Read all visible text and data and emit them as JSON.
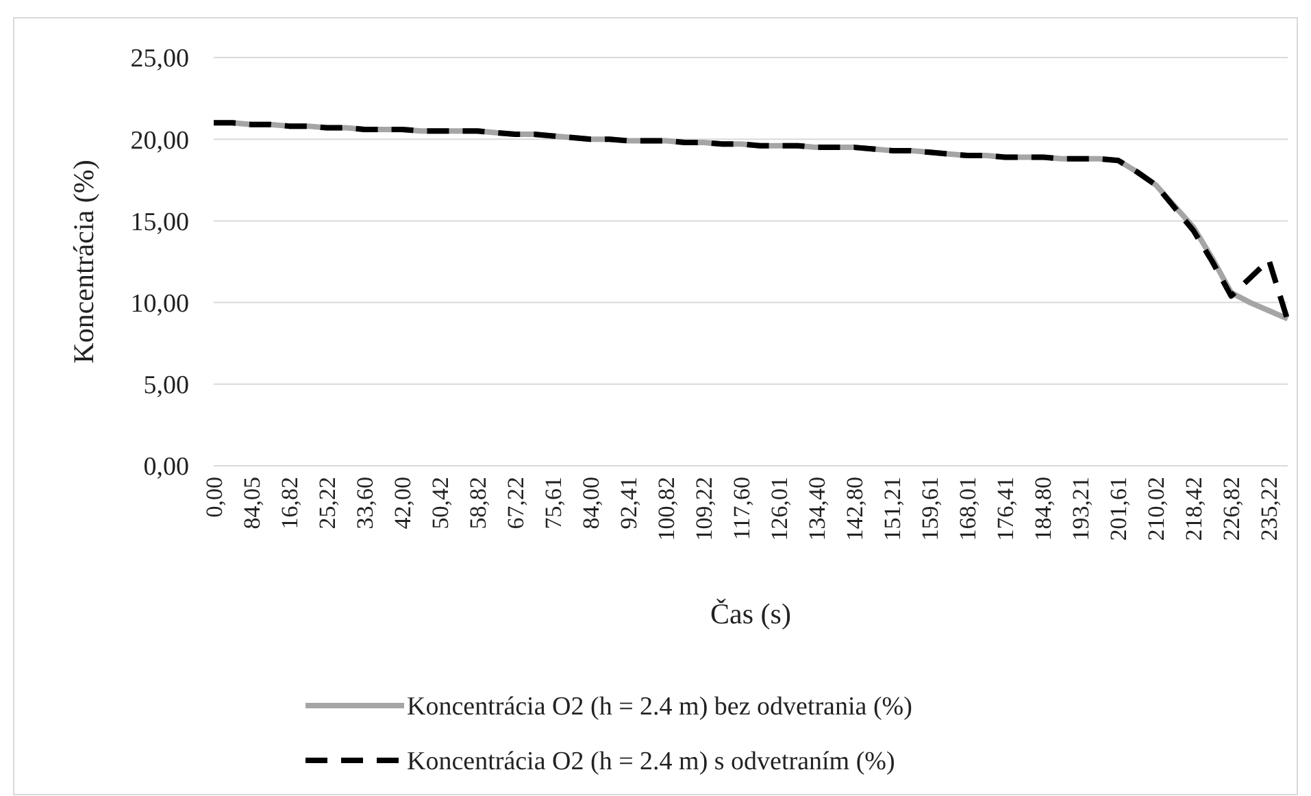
{
  "chart_data": {
    "type": "line",
    "xlabel": "Čas (s)",
    "ylabel": "Koncentrácia (%)",
    "categories": [
      "0,00",
      null,
      "84,05",
      null,
      "16,82",
      null,
      "25,22",
      null,
      "33,60",
      null,
      "42,00",
      null,
      "50,42",
      null,
      "58,82",
      null,
      "67,22",
      null,
      "75,61",
      null,
      "84,00",
      null,
      "92,41",
      null,
      "100,82",
      null,
      "109,22",
      null,
      "117,60",
      null,
      "126,01",
      null,
      "134,40",
      null,
      "142,80",
      null,
      "151,21",
      null,
      "159,61",
      null,
      "168,01",
      null,
      "176,41",
      null,
      "184,80",
      null,
      "193,21",
      null,
      "201,61",
      null,
      "210,02",
      null,
      "218,42",
      null,
      "226,82",
      null,
      "235,22",
      null
    ],
    "series": [
      {
        "name": "Koncentrácia O2 (h = 2.4 m) bez odvetrania (%)",
        "color": "#a5a5a5",
        "line_style": "solid",
        "values": [
          21.0,
          21.0,
          20.9,
          20.9,
          20.8,
          20.8,
          20.7,
          20.7,
          20.6,
          20.6,
          20.6,
          20.5,
          20.5,
          20.5,
          20.5,
          20.4,
          20.3,
          20.3,
          20.2,
          20.1,
          20.0,
          20.0,
          19.9,
          19.9,
          19.9,
          19.8,
          19.8,
          19.7,
          19.7,
          19.6,
          19.6,
          19.6,
          19.5,
          19.5,
          19.5,
          19.4,
          19.3,
          19.3,
          19.2,
          19.1,
          19.0,
          19.0,
          18.9,
          18.9,
          18.9,
          18.8,
          18.8,
          18.8,
          18.7,
          18.0,
          17.2,
          15.9,
          14.6,
          12.7,
          10.6,
          10.0,
          9.5,
          9.0
        ]
      },
      {
        "name": "Koncentrácia O2 (h = 2.4 m) s odvetraním (%)",
        "color": "#000000",
        "line_style": "dashed",
        "values": [
          21.0,
          21.0,
          20.9,
          20.9,
          20.8,
          20.8,
          20.7,
          20.7,
          20.6,
          20.6,
          20.6,
          20.5,
          20.5,
          20.5,
          20.5,
          20.4,
          20.3,
          20.3,
          20.2,
          20.1,
          20.0,
          20.0,
          19.9,
          19.9,
          19.9,
          19.8,
          19.8,
          19.7,
          19.7,
          19.6,
          19.6,
          19.6,
          19.5,
          19.5,
          19.5,
          19.4,
          19.3,
          19.3,
          19.2,
          19.1,
          19.0,
          19.0,
          18.9,
          18.9,
          18.9,
          18.8,
          18.8,
          18.8,
          18.7,
          18.0,
          17.2,
          15.8,
          14.4,
          12.5,
          10.4,
          11.5,
          12.6,
          8.9
        ]
      }
    ],
    "ylim": [
      0,
      25
    ],
    "yticks": [
      {
        "value": 0,
        "label": "0,00"
      },
      {
        "value": 5,
        "label": "5,00"
      },
      {
        "value": 10,
        "label": "10,00"
      },
      {
        "value": 15,
        "label": "15,00"
      },
      {
        "value": 20,
        "label": "20,00"
      },
      {
        "value": 25,
        "label": "25,00"
      }
    ],
    "grid": "y",
    "legend": "bottom"
  }
}
